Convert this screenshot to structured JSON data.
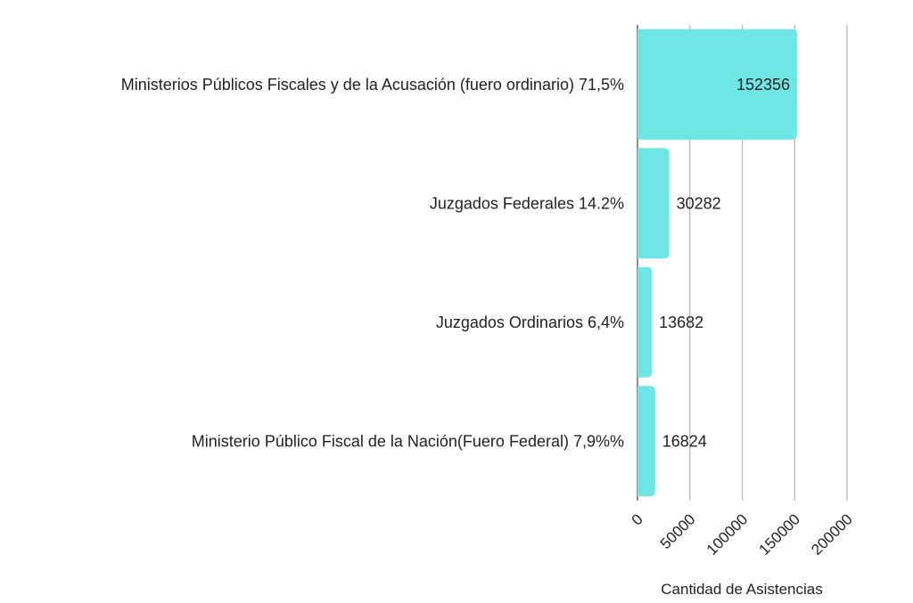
{
  "chart_data": {
    "type": "bar",
    "orientation": "horizontal",
    "title": "",
    "xlabel": "Cantidad de Asistencias",
    "ylabel": "",
    "categories": [
      "Ministerios Públicos Fiscales y de la Acusación (fuero ordinario) 71,5%",
      "Juzgados Federales 14.2%",
      "Juzgados Ordinarios 6,4%",
      "Ministerio Público Fiscal de la Nación(Fuero Federal) 7,9%%"
    ],
    "values": [
      152356,
      30282,
      13682,
      16824
    ],
    "xlim": [
      0,
      200000
    ],
    "xticks": [
      0,
      50000,
      100000,
      150000,
      200000
    ],
    "tick_labels": [
      "0",
      "50000",
      "100000",
      "150000",
      "200000"
    ],
    "grid": true,
    "legend": "none",
    "bar_color": "#6ee6e6"
  }
}
